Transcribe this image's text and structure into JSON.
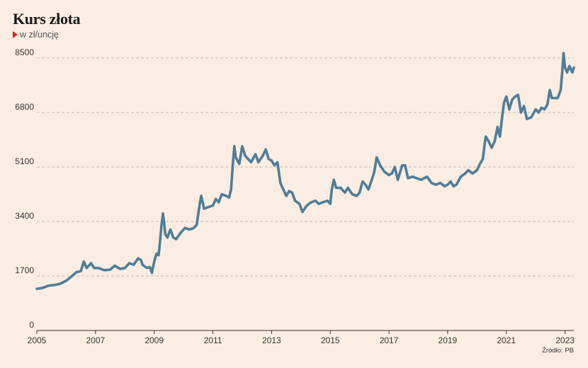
{
  "header": {
    "title": "Kurs złota",
    "subtitle": "w zł/uncję"
  },
  "source": "Źródło: PB",
  "colors": {
    "background": "#fbede1",
    "line": "#4f7d9a",
    "accent": "#d4232b",
    "grid": "#b8aca3"
  },
  "icons": {
    "subtitle_marker": "red-triangle-marker-icon"
  },
  "chart_data": {
    "type": "line",
    "title": "Kurs złota",
    "subtitle": "w zł/uncję",
    "xlabel": "",
    "ylabel": "",
    "xlim": [
      2005,
      2023.3
    ],
    "ylim": [
      0,
      8500
    ],
    "y_ticks": [
      0,
      1700,
      3400,
      5100,
      6800,
      8500
    ],
    "x_ticks": [
      2005,
      2007,
      2009,
      2011,
      2013,
      2015,
      2017,
      2019,
      2021,
      2023
    ],
    "grid": "horizontal dashed",
    "series": [
      {
        "name": "",
        "points": [
          [
            2005.0,
            1300
          ],
          [
            2005.2,
            1330
          ],
          [
            2005.4,
            1400
          ],
          [
            2005.6,
            1420
          ],
          [
            2005.8,
            1460
          ],
          [
            2006.0,
            1550
          ],
          [
            2006.2,
            1700
          ],
          [
            2006.35,
            1820
          ],
          [
            2006.5,
            1850
          ],
          [
            2006.6,
            2150
          ],
          [
            2006.7,
            1950
          ],
          [
            2006.85,
            2100
          ],
          [
            2006.95,
            1950
          ],
          [
            2007.1,
            1950
          ],
          [
            2007.3,
            1880
          ],
          [
            2007.5,
            1900
          ],
          [
            2007.65,
            2020
          ],
          [
            2007.85,
            1920
          ],
          [
            2008.0,
            1950
          ],
          [
            2008.15,
            2100
          ],
          [
            2008.3,
            2050
          ],
          [
            2008.45,
            2250
          ],
          [
            2008.55,
            2200
          ],
          [
            2008.6,
            2050
          ],
          [
            2008.75,
            1950
          ],
          [
            2008.85,
            1980
          ],
          [
            2008.92,
            1800
          ],
          [
            2009.0,
            2150
          ],
          [
            2009.08,
            2400
          ],
          [
            2009.15,
            2350
          ],
          [
            2009.2,
            2800
          ],
          [
            2009.25,
            3300
          ],
          [
            2009.3,
            3650
          ],
          [
            2009.38,
            3000
          ],
          [
            2009.45,
            2900
          ],
          [
            2009.55,
            3150
          ],
          [
            2009.65,
            2900
          ],
          [
            2009.75,
            2850
          ],
          [
            2009.9,
            3050
          ],
          [
            2010.05,
            3200
          ],
          [
            2010.2,
            3150
          ],
          [
            2010.35,
            3200
          ],
          [
            2010.45,
            3300
          ],
          [
            2010.55,
            3950
          ],
          [
            2010.6,
            4200
          ],
          [
            2010.7,
            3800
          ],
          [
            2010.85,
            3850
          ],
          [
            2011.0,
            3900
          ],
          [
            2011.1,
            4100
          ],
          [
            2011.2,
            4000
          ],
          [
            2011.3,
            4250
          ],
          [
            2011.45,
            4200
          ],
          [
            2011.55,
            4150
          ],
          [
            2011.62,
            4400
          ],
          [
            2011.68,
            5200
          ],
          [
            2011.73,
            5750
          ],
          [
            2011.78,
            5400
          ],
          [
            2011.9,
            5200
          ],
          [
            2012.0,
            5750
          ],
          [
            2012.1,
            5450
          ],
          [
            2012.2,
            5350
          ],
          [
            2012.3,
            5250
          ],
          [
            2012.45,
            5500
          ],
          [
            2012.55,
            5250
          ],
          [
            2012.7,
            5450
          ],
          [
            2012.8,
            5650
          ],
          [
            2012.9,
            5350
          ],
          [
            2013.0,
            5300
          ],
          [
            2013.1,
            5150
          ],
          [
            2013.2,
            5250
          ],
          [
            2013.3,
            4600
          ],
          [
            2013.4,
            4400
          ],
          [
            2013.5,
            4200
          ],
          [
            2013.6,
            4350
          ],
          [
            2013.7,
            4300
          ],
          [
            2013.8,
            4050
          ],
          [
            2013.95,
            3950
          ],
          [
            2014.05,
            3700
          ],
          [
            2014.2,
            3900
          ],
          [
            2014.35,
            4000
          ],
          [
            2014.5,
            4050
          ],
          [
            2014.6,
            3950
          ],
          [
            2014.75,
            4000
          ],
          [
            2014.9,
            4050
          ],
          [
            2015.0,
            3950
          ],
          [
            2015.05,
            4400
          ],
          [
            2015.12,
            4700
          ],
          [
            2015.2,
            4450
          ],
          [
            2015.35,
            4450
          ],
          [
            2015.5,
            4300
          ],
          [
            2015.6,
            4450
          ],
          [
            2015.75,
            4250
          ],
          [
            2015.9,
            4200
          ],
          [
            2016.0,
            4300
          ],
          [
            2016.1,
            4650
          ],
          [
            2016.2,
            4550
          ],
          [
            2016.3,
            4400
          ],
          [
            2016.45,
            4800
          ],
          [
            2016.5,
            4950
          ],
          [
            2016.58,
            5400
          ],
          [
            2016.7,
            5150
          ],
          [
            2016.85,
            4950
          ],
          [
            2017.0,
            4850
          ],
          [
            2017.1,
            4900
          ],
          [
            2017.2,
            5100
          ],
          [
            2017.3,
            4700
          ],
          [
            2017.45,
            5150
          ],
          [
            2017.55,
            5150
          ],
          [
            2017.65,
            4750
          ],
          [
            2017.8,
            4800
          ],
          [
            2017.95,
            4750
          ],
          [
            2018.1,
            4700
          ],
          [
            2018.3,
            4800
          ],
          [
            2018.45,
            4600
          ],
          [
            2018.6,
            4550
          ],
          [
            2018.75,
            4600
          ],
          [
            2018.9,
            4500
          ],
          [
            2019.0,
            4550
          ],
          [
            2019.1,
            4650
          ],
          [
            2019.2,
            4500
          ],
          [
            2019.3,
            4550
          ],
          [
            2019.45,
            4800
          ],
          [
            2019.6,
            4900
          ],
          [
            2019.7,
            5000
          ],
          [
            2019.85,
            4900
          ],
          [
            2020.0,
            5000
          ],
          [
            2020.1,
            5200
          ],
          [
            2020.2,
            5350
          ],
          [
            2020.25,
            5750
          ],
          [
            2020.3,
            6050
          ],
          [
            2020.4,
            5900
          ],
          [
            2020.5,
            5700
          ],
          [
            2020.6,
            5900
          ],
          [
            2020.7,
            6350
          ],
          [
            2020.78,
            6050
          ],
          [
            2020.85,
            6600
          ],
          [
            2020.92,
            7100
          ],
          [
            2021.0,
            7300
          ],
          [
            2021.1,
            6900
          ],
          [
            2021.2,
            7200
          ],
          [
            2021.3,
            7300
          ],
          [
            2021.4,
            7350
          ],
          [
            2021.5,
            6800
          ],
          [
            2021.6,
            7000
          ],
          [
            2021.7,
            6600
          ],
          [
            2021.85,
            6650
          ],
          [
            2022.0,
            6900
          ],
          [
            2022.1,
            6800
          ],
          [
            2022.2,
            6950
          ],
          [
            2022.3,
            6900
          ],
          [
            2022.4,
            7050
          ],
          [
            2022.48,
            7500
          ],
          [
            2022.55,
            7250
          ],
          [
            2022.65,
            7250
          ],
          [
            2022.75,
            7250
          ],
          [
            2022.85,
            7500
          ],
          [
            2022.9,
            8000
          ],
          [
            2022.95,
            8650
          ],
          [
            2023.0,
            8200
          ],
          [
            2023.07,
            8050
          ],
          [
            2023.15,
            8250
          ],
          [
            2023.25,
            8050
          ],
          [
            2023.3,
            8200
          ]
        ]
      }
    ]
  }
}
